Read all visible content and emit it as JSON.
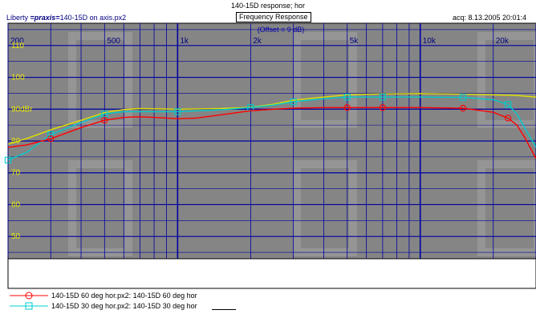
{
  "window": {
    "title": "140-15D response; hor",
    "left_info_prefix": "Liberty",
    "left_info_brand": "=praxis=",
    "left_info_file": "140-15D on axis.px2",
    "subtitle": "Frequency Response",
    "acq": "acq: 8.13.2005 20:01:4"
  },
  "chart_data": {
    "type": "line",
    "title": "Frequency Response",
    "annotation": "(Offset = 9 dB)",
    "x_scale": "log",
    "xlim": [
      200,
      30000
    ],
    "ylim": [
      43,
      117
    ],
    "x_tick_labels": [
      {
        "x": 200,
        "label": "200"
      },
      {
        "x": 500,
        "label": "500"
      },
      {
        "x": 1000,
        "label": "1k"
      },
      {
        "x": 2000,
        "label": "2k"
      },
      {
        "x": 5000,
        "label": "5k"
      },
      {
        "x": 10000,
        "label": "10k"
      },
      {
        "x": 20000,
        "label": "20k"
      }
    ],
    "y_tick_labels": [
      {
        "y": 110,
        "label": "110"
      },
      {
        "y": 100,
        "label": "100"
      },
      {
        "y": 90,
        "label": "90dBr"
      },
      {
        "y": 80,
        "label": "80"
      },
      {
        "y": 70,
        "label": "70"
      },
      {
        "y": 60,
        "label": "60"
      },
      {
        "y": 50,
        "label": "50"
      }
    ],
    "grid": true,
    "background_color": "#858585",
    "grid_color": "#0000a0",
    "series": [
      {
        "name": "140-15D 60 deg hor.px2:  140-15D 60 deg hor",
        "color": "#ff0000",
        "marker": "circle",
        "points": [
          [
            200,
            78
          ],
          [
            240,
            78.8
          ],
          [
            300,
            80.7
          ],
          [
            400,
            84.2
          ],
          [
            500,
            86.5
          ],
          [
            600,
            87.4
          ],
          [
            700,
            87.6
          ],
          [
            800,
            87.4
          ],
          [
            1000,
            87
          ],
          [
            1200,
            87.2
          ],
          [
            1500,
            88.2
          ],
          [
            2000,
            89.5
          ],
          [
            2500,
            90
          ],
          [
            3000,
            90.3
          ],
          [
            4000,
            90.5
          ],
          [
            5000,
            90.5
          ],
          [
            7000,
            90.5
          ],
          [
            10000,
            90.5
          ],
          [
            15000,
            90.3
          ],
          [
            20000,
            89
          ],
          [
            23000,
            87.2
          ],
          [
            25000,
            85
          ],
          [
            27000,
            81
          ],
          [
            30000,
            74.5
          ]
        ],
        "markers": [
          [
            300,
            80.7
          ],
          [
            500,
            86.5
          ],
          [
            5000,
            90.5
          ],
          [
            7000,
            90.5
          ],
          [
            15000,
            90.3
          ],
          [
            23000,
            87.2
          ]
        ]
      },
      {
        "name": "140-15D 30 deg hor.px2:  140-15D 30 deg hor",
        "color": "#00cccc",
        "marker": "square",
        "points": [
          [
            200,
            74
          ],
          [
            240,
            76.5
          ],
          [
            300,
            82
          ],
          [
            400,
            85.8
          ],
          [
            500,
            88.5
          ],
          [
            600,
            89.2
          ],
          [
            700,
            89.2
          ],
          [
            1000,
            89.2
          ],
          [
            1500,
            89.8
          ],
          [
            2000,
            90.5
          ],
          [
            2500,
            91.3
          ],
          [
            3000,
            92.3
          ],
          [
            4000,
            93.3
          ],
          [
            5000,
            93.8
          ],
          [
            7000,
            93.8
          ],
          [
            10000,
            93.8
          ],
          [
            15000,
            93.7
          ],
          [
            20000,
            93
          ],
          [
            23000,
            91.5
          ],
          [
            25000,
            88.5
          ],
          [
            27000,
            84
          ],
          [
            30000,
            78
          ]
        ],
        "markers": [
          [
            200,
            74
          ],
          [
            300,
            82
          ],
          [
            500,
            88.5
          ],
          [
            1000,
            89.2
          ],
          [
            2000,
            90.5
          ],
          [
            3000,
            92.3
          ],
          [
            5000,
            93.8
          ],
          [
            7000,
            93.8
          ],
          [
            15000,
            93.7
          ],
          [
            23000,
            91.5
          ]
        ]
      },
      {
        "name": "140-15D on axis",
        "color": "#e0e000",
        "marker": "none",
        "points": [
          [
            200,
            79
          ],
          [
            240,
            80.8
          ],
          [
            300,
            83.5
          ],
          [
            400,
            86.5
          ],
          [
            500,
            88.9
          ],
          [
            600,
            89.9
          ],
          [
            700,
            90.2
          ],
          [
            1000,
            90
          ],
          [
            1500,
            90.2
          ],
          [
            2000,
            90.6
          ],
          [
            2500,
            91.6
          ],
          [
            3000,
            92.8
          ],
          [
            4000,
            93.8
          ],
          [
            5000,
            94.5
          ],
          [
            7000,
            94.8
          ],
          [
            10000,
            94.9
          ],
          [
            15000,
            94.7
          ],
          [
            20000,
            94.5
          ],
          [
            25000,
            94.3
          ],
          [
            30000,
            93.8
          ]
        ],
        "markers": []
      }
    ]
  },
  "legend": [
    {
      "text": "140-15D 60 deg hor.px2:  140-15D 60 deg hor",
      "color": "#ff0000",
      "marker": "circle"
    },
    {
      "text": "140-15D 30 deg hor.px2:  140-15D 30 deg hor",
      "color": "#00cccc",
      "marker": "square"
    }
  ]
}
